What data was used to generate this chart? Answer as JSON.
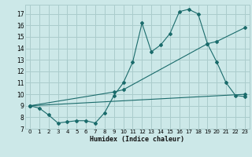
{
  "bg_color": "#cce8e8",
  "grid_color": "#aacccc",
  "line_color": "#1a6b6b",
  "xlabel": "Humidex (Indice chaleur)",
  "xlim": [
    -0.5,
    23.5
  ],
  "ylim": [
    7,
    17.8
  ],
  "yticks": [
    7,
    8,
    9,
    10,
    11,
    12,
    13,
    14,
    15,
    16,
    17
  ],
  "xticks": [
    0,
    1,
    2,
    3,
    4,
    5,
    6,
    7,
    8,
    9,
    10,
    11,
    12,
    13,
    14,
    15,
    16,
    17,
    18,
    19,
    20,
    21,
    22,
    23
  ],
  "line1_x": [
    0,
    1,
    2,
    3,
    4,
    5,
    6,
    7,
    8,
    9,
    10,
    11,
    12,
    13,
    14,
    15,
    16,
    17,
    18,
    19,
    20,
    21,
    22,
    23
  ],
  "line1_y": [
    9.0,
    8.8,
    8.2,
    7.5,
    7.6,
    7.7,
    7.7,
    7.5,
    8.4,
    9.9,
    11.0,
    12.8,
    16.2,
    13.7,
    14.3,
    15.3,
    17.2,
    17.4,
    17.0,
    14.4,
    12.8,
    11.0,
    9.9,
    9.8
  ],
  "line2_x": [
    0,
    9,
    10,
    19,
    20,
    23
  ],
  "line2_y": [
    9.0,
    10.2,
    10.4,
    14.4,
    14.6,
    15.8
  ],
  "line3_x": [
    0,
    23
  ],
  "line3_y": [
    9.0,
    10.0
  ]
}
